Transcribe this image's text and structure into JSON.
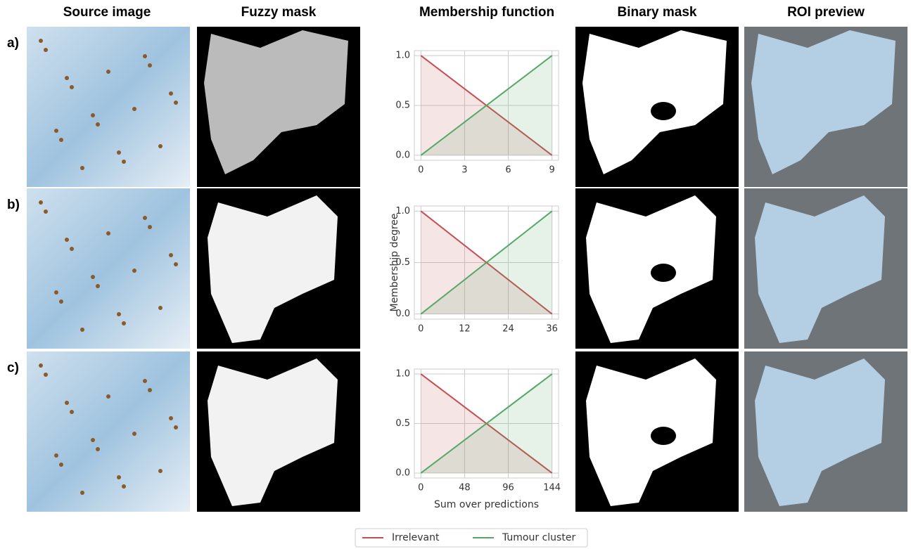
{
  "columns": [
    "Source image",
    "Fuzzy mask",
    "Membership function",
    "Binary mask",
    "ROI preview"
  ],
  "rows": [
    "a)",
    "b)",
    "c)"
  ],
  "chart_data": [
    {
      "type": "line",
      "x": [
        0,
        9
      ],
      "series": [
        {
          "name": "Irrelevant",
          "color": "#c44e52",
          "values": [
            1,
            0
          ]
        },
        {
          "name": "Tumour cluster",
          "color": "#55a868",
          "values": [
            0,
            1
          ]
        }
      ],
      "xlim": [
        -0.45,
        9.45
      ],
      "xticks": [
        0,
        3,
        6,
        9
      ],
      "ylim": [
        -0.05,
        1.05
      ],
      "yticks": [
        {
          "value": 0,
          "label": "0.0"
        },
        {
          "value": 0.5,
          "label": "0.5"
        },
        {
          "value": 1,
          "label": "1.0"
        }
      ],
      "grid": true
    },
    {
      "type": "line",
      "x": [
        0,
        36
      ],
      "ylabel": "Membership degree",
      "series": [
        {
          "name": "Irrelevant",
          "color": "#c44e52",
          "values": [
            1,
            0
          ]
        },
        {
          "name": "Tumour cluster",
          "color": "#55a868",
          "values": [
            0,
            1
          ]
        }
      ],
      "xlim": [
        -1.8,
        37.8
      ],
      "xticks": [
        0,
        12,
        24,
        36
      ],
      "ylim": [
        -0.05,
        1.05
      ],
      "yticks": [
        {
          "value": 0,
          "label": "0.0"
        },
        {
          "value": 0.5,
          "label": "0.5"
        },
        {
          "value": 1,
          "label": "1.0"
        }
      ],
      "grid": true
    },
    {
      "type": "line",
      "x": [
        0,
        144
      ],
      "xlabel": "Sum over predictions",
      "series": [
        {
          "name": "Irrelevant",
          "color": "#c44e52",
          "values": [
            1,
            0
          ]
        },
        {
          "name": "Tumour cluster",
          "color": "#55a868",
          "values": [
            0,
            1
          ]
        }
      ],
      "xlim": [
        -7.2,
        151.2
      ],
      "xticks": [
        0,
        48,
        96,
        144
      ],
      "ylim": [
        -0.05,
        1.05
      ],
      "yticks": [
        {
          "value": 0,
          "label": "0.0"
        },
        {
          "value": 0.5,
          "label": "0.5"
        },
        {
          "value": 1,
          "label": "1.0"
        }
      ],
      "grid": true
    }
  ]
}
